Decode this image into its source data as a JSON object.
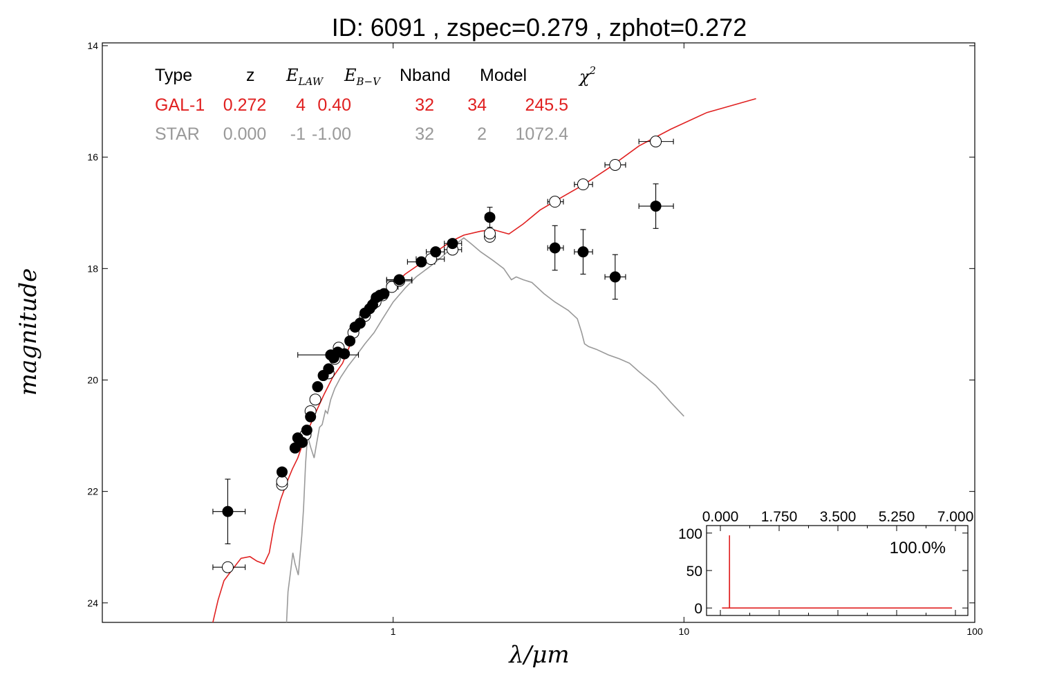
{
  "chart_data": {
    "type": "scatter",
    "title": "ID:  6091  , zspec=0.279 , zphot=0.272",
    "xlabel": "λ/μm",
    "ylabel": "magnitude",
    "xscale": "log",
    "xlim": [
      0.1,
      100
    ],
    "ylim": [
      24.35,
      13.95
    ],
    "y_inverted": true,
    "x_ticks": [
      {
        "v": 1,
        "label": "1"
      },
      {
        "v": 10,
        "label": "10"
      },
      {
        "v": 100,
        "label": "100"
      }
    ],
    "y_ticks": [
      {
        "v": 14,
        "label": "14"
      },
      {
        "v": 16,
        "label": "16"
      },
      {
        "v": 18,
        "label": "18"
      },
      {
        "v": 20,
        "label": "20"
      },
      {
        "v": 22,
        "label": "22"
      },
      {
        "v": 24,
        "label": "24"
      }
    ],
    "colors": {
      "galaxy_model": "#e02020",
      "star_model": "#999999",
      "observed": "#000000",
      "model_point": "#ffffff"
    },
    "legend_table": {
      "headers": [
        "Type",
        "z",
        "E",
        "LAW",
        "E",
        "B−V",
        "Nband",
        "Model",
        "χ",
        "2"
      ],
      "rows": [
        {
          "color": "#e02020",
          "cells": [
            "GAL-1",
            "0.272",
            "4",
            "0.40",
            "32",
            "34",
            "245.5"
          ]
        },
        {
          "color": "#999999",
          "cells": [
            "STAR",
            "0.000",
            "-1",
            "-1.00",
            "32",
            "2",
            "1072.4"
          ]
        }
      ]
    },
    "series": [
      {
        "role": "galaxy-model",
        "points": [
          [
            0.24,
            24.35
          ],
          [
            0.25,
            23.95
          ],
          [
            0.262,
            23.6
          ],
          [
            0.28,
            23.4
          ],
          [
            0.3,
            23.2
          ],
          [
            0.322,
            23.17
          ],
          [
            0.34,
            23.25
          ],
          [
            0.36,
            23.3
          ],
          [
            0.375,
            23.1
          ],
          [
            0.39,
            22.6
          ],
          [
            0.41,
            22.15
          ],
          [
            0.43,
            21.85
          ],
          [
            0.45,
            21.6
          ],
          [
            0.47,
            21.4
          ],
          [
            0.5,
            21.0
          ],
          [
            0.54,
            20.6
          ],
          [
            0.58,
            20.25
          ],
          [
            0.62,
            19.95
          ],
          [
            0.67,
            19.7
          ],
          [
            0.72,
            19.3
          ],
          [
            0.78,
            19.0
          ],
          [
            0.85,
            18.65
          ],
          [
            0.92,
            18.45
          ],
          [
            1.0,
            18.3
          ],
          [
            1.1,
            18.1
          ],
          [
            1.25,
            17.9
          ],
          [
            1.4,
            17.7
          ],
          [
            1.6,
            17.5
          ],
          [
            1.75,
            17.4
          ],
          [
            2.0,
            17.33
          ],
          [
            2.2,
            17.3
          ],
          [
            2.5,
            17.38
          ],
          [
            2.8,
            17.2
          ],
          [
            3.2,
            16.95
          ],
          [
            3.8,
            16.72
          ],
          [
            4.5,
            16.5
          ],
          [
            5.5,
            16.2
          ],
          [
            7.0,
            15.8
          ],
          [
            9.0,
            15.5
          ],
          [
            12.0,
            15.2
          ],
          [
            17.7,
            14.95
          ]
        ]
      },
      {
        "role": "star-model",
        "points": [
          [
            0.43,
            24.35
          ],
          [
            0.435,
            23.8
          ],
          [
            0.445,
            23.4
          ],
          [
            0.452,
            23.1
          ],
          [
            0.46,
            23.3
          ],
          [
            0.472,
            23.5
          ],
          [
            0.485,
            22.8
          ],
          [
            0.492,
            22.3
          ],
          [
            0.5,
            21.5
          ],
          [
            0.508,
            21.0
          ],
          [
            0.52,
            21.2
          ],
          [
            0.535,
            21.4
          ],
          [
            0.545,
            21.15
          ],
          [
            0.558,
            20.85
          ],
          [
            0.57,
            20.8
          ],
          [
            0.585,
            20.55
          ],
          [
            0.595,
            20.6
          ],
          [
            0.61,
            20.35
          ],
          [
            0.63,
            20.15
          ],
          [
            0.66,
            19.95
          ],
          [
            0.7,
            19.75
          ],
          [
            0.75,
            19.55
          ],
          [
            0.8,
            19.35
          ],
          [
            0.86,
            19.15
          ],
          [
            0.92,
            18.9
          ],
          [
            1.0,
            18.6
          ],
          [
            1.1,
            18.35
          ],
          [
            1.2,
            18.15
          ],
          [
            1.35,
            17.95
          ],
          [
            1.5,
            17.75
          ],
          [
            1.65,
            17.55
          ],
          [
            1.75,
            17.45
          ],
          [
            1.85,
            17.55
          ],
          [
            2.0,
            17.7
          ],
          [
            2.2,
            17.85
          ],
          [
            2.4,
            18.0
          ],
          [
            2.55,
            18.2
          ],
          [
            2.65,
            18.15
          ],
          [
            2.8,
            18.2
          ],
          [
            3.0,
            18.25
          ],
          [
            3.3,
            18.45
          ],
          [
            3.6,
            18.6
          ],
          [
            4.0,
            18.75
          ],
          [
            4.3,
            18.9
          ],
          [
            4.45,
            19.15
          ],
          [
            4.55,
            19.35
          ],
          [
            4.7,
            19.4
          ],
          [
            5.0,
            19.45
          ],
          [
            5.5,
            19.55
          ],
          [
            6.0,
            19.62
          ],
          [
            6.5,
            19.7
          ],
          [
            7.0,
            19.85
          ],
          [
            8.0,
            20.1
          ],
          [
            9.0,
            20.4
          ],
          [
            10.0,
            20.65
          ]
        ]
      },
      {
        "role": "observed",
        "points": [
          {
            "x": 0.27,
            "y": 22.36,
            "xerr": [
              0.24,
              0.31
            ],
            "yerr": 0.58
          },
          {
            "x": 0.415,
            "y": 21.65,
            "xerr": [
              0.405,
              0.43
            ],
            "yerr": 0.06
          },
          {
            "x": 0.46,
            "y": 21.22,
            "xerr": [
              0.452,
              0.47
            ],
            "yerr": 0.05
          },
          {
            "x": 0.47,
            "y": 21.04,
            "xerr": [
              0.46,
              0.48
            ],
            "yerr": 0.05
          },
          {
            "x": 0.487,
            "y": 21.12,
            "xerr": [
              0.475,
              0.5
            ],
            "yerr": 0.05
          },
          {
            "x": 0.505,
            "y": 20.9,
            "xerr": [
              0.495,
              0.515
            ],
            "yerr": 0.05
          },
          {
            "x": 0.52,
            "y": 20.66,
            "xerr": [
              0.51,
              0.53
            ],
            "yerr": 0.05
          },
          {
            "x": 0.55,
            "y": 20.12,
            "xerr": [
              0.54,
              0.56
            ],
            "yerr": 0.05
          },
          {
            "x": 0.575,
            "y": 19.92,
            "xerr": [
              0.565,
              0.585
            ],
            "yerr": 0.05
          },
          {
            "x": 0.6,
            "y": 19.8,
            "xerr": [
              0.59,
              0.61
            ],
            "yerr": 0.05
          },
          {
            "x": 0.61,
            "y": 19.55,
            "xerr": [
              0.47,
              0.76
            ],
            "yerr": 0.05
          },
          {
            "x": 0.625,
            "y": 19.6,
            "xerr": [
              0.615,
              0.635
            ],
            "yerr": 0.05
          },
          {
            "x": 0.645,
            "y": 19.5,
            "xerr": [
              0.635,
              0.655
            ],
            "yerr": 0.05
          },
          {
            "x": 0.68,
            "y": 19.53,
            "xerr": [
              0.67,
              0.69
            ],
            "yerr": 0.05
          },
          {
            "x": 0.71,
            "y": 19.3,
            "xerr": [
              0.7,
              0.72
            ],
            "yerr": 0.05
          },
          {
            "x": 0.74,
            "y": 19.05,
            "xerr": [
              0.73,
              0.75
            ],
            "yerr": 0.05
          },
          {
            "x": 0.77,
            "y": 18.98,
            "xerr": [
              0.76,
              0.78
            ],
            "yerr": 0.05
          },
          {
            "x": 0.8,
            "y": 18.8,
            "xerr": [
              0.79,
              0.81
            ],
            "yerr": 0.05
          },
          {
            "x": 0.83,
            "y": 18.72,
            "xerr": [
              0.82,
              0.84
            ],
            "yerr": 0.05
          },
          {
            "x": 0.85,
            "y": 18.65,
            "xerr": [
              0.84,
              0.86
            ],
            "yerr": 0.05
          },
          {
            "x": 0.875,
            "y": 18.52,
            "xerr": [
              0.865,
              0.885
            ],
            "yerr": 0.05
          },
          {
            "x": 0.9,
            "y": 18.48,
            "xerr": [
              0.89,
              0.91
            ],
            "yerr": 0.05
          },
          {
            "x": 0.93,
            "y": 18.45,
            "xerr": [
              0.92,
              0.94
            ],
            "yerr": 0.05
          },
          {
            "x": 1.05,
            "y": 18.2,
            "xerr": [
              0.95,
              1.16
            ],
            "yerr": 0.05
          },
          {
            "x": 1.25,
            "y": 17.88,
            "xerr": [
              1.12,
              1.39
            ],
            "yerr": 0.05
          },
          {
            "x": 1.4,
            "y": 17.7,
            "xerr": [
              1.3,
              1.5
            ],
            "yerr": 0.05
          },
          {
            "x": 1.6,
            "y": 17.55,
            "xerr": [
              1.5,
              1.72
            ],
            "yerr": 0.05
          },
          {
            "x": 2.15,
            "y": 17.08,
            "xerr": [
              2.07,
              2.23
            ],
            "yerr": 0.18
          },
          {
            "x": 3.6,
            "y": 17.63,
            "xerr": [
              3.4,
              3.85
            ],
            "yerr": 0.4
          },
          {
            "x": 4.5,
            "y": 17.7,
            "xerr": [
              4.2,
              4.85
            ],
            "yerr": 0.4
          },
          {
            "x": 5.8,
            "y": 18.15,
            "xerr": [
              5.35,
              6.3
            ],
            "yerr": 0.4
          },
          {
            "x": 8.0,
            "y": 16.88,
            "xerr": [
              7.0,
              9.2
            ],
            "yerr": 0.4
          }
        ]
      },
      {
        "role": "model-magnitudes",
        "points": [
          {
            "x": 0.27,
            "y": 23.36,
            "xerr": [
              0.24,
              0.31
            ]
          },
          {
            "x": 0.415,
            "y": 21.88,
            "xerr": [
              0.405,
              0.43
            ]
          },
          {
            "x": 0.415,
            "y": 21.82,
            "xerr": [
              0.405,
              0.43
            ]
          },
          {
            "x": 0.5,
            "y": 20.98,
            "xerr": [
              0.49,
              0.51
            ]
          },
          {
            "x": 0.52,
            "y": 20.56,
            "xerr": [
              0.51,
              0.53
            ]
          },
          {
            "x": 0.54,
            "y": 20.35,
            "xerr": [
              0.53,
              0.55
            ]
          },
          {
            "x": 0.6,
            "y": 19.88,
            "xerr": [
              0.59,
              0.61
            ]
          },
          {
            "x": 0.63,
            "y": 19.62,
            "xerr": [
              0.62,
              0.64
            ]
          },
          {
            "x": 0.65,
            "y": 19.42,
            "xerr": [
              0.64,
              0.66
            ]
          },
          {
            "x": 0.73,
            "y": 19.15,
            "xerr": [
              0.72,
              0.74
            ]
          },
          {
            "x": 0.8,
            "y": 18.85,
            "xerr": [
              0.79,
              0.81
            ]
          },
          {
            "x": 0.87,
            "y": 18.6,
            "xerr": [
              0.86,
              0.88
            ]
          },
          {
            "x": 0.92,
            "y": 18.48,
            "xerr": [
              0.91,
              0.93
            ]
          },
          {
            "x": 0.99,
            "y": 18.33,
            "xerr": [
              0.95,
              1.04
            ]
          },
          {
            "x": 1.05,
            "y": 18.22,
            "xerr": [
              0.95,
              1.16
            ]
          },
          {
            "x": 1.35,
            "y": 17.83,
            "xerr": [
              1.2,
              1.5
            ]
          },
          {
            "x": 1.6,
            "y": 17.66,
            "xerr": [
              1.5,
              1.72
            ]
          },
          {
            "x": 2.15,
            "y": 17.43,
            "xerr": [
              2.07,
              2.23
            ]
          },
          {
            "x": 2.15,
            "y": 17.37,
            "xerr": [
              2.07,
              2.23
            ]
          },
          {
            "x": 3.6,
            "y": 16.8,
            "xerr": [
              3.4,
              3.85
            ]
          },
          {
            "x": 4.5,
            "y": 16.49,
            "xerr": [
              4.2,
              4.85
            ]
          },
          {
            "x": 5.8,
            "y": 16.14,
            "xerr": [
              5.35,
              6.3
            ]
          },
          {
            "x": 8.0,
            "y": 15.72,
            "xerr": [
              7.0,
              9.2
            ]
          }
        ]
      }
    ],
    "inset": {
      "type": "line",
      "x_ticks": [
        {
          "v": 0,
          "label": "0.000"
        },
        {
          "v": 1.75,
          "label": "1.750"
        },
        {
          "v": 3.5,
          "label": "3.500"
        },
        {
          "v": 5.25,
          "label": "5.250"
        },
        {
          "v": 7,
          "label": "7.000"
        }
      ],
      "y_ticks": [
        {
          "v": 0,
          "label": "0"
        },
        {
          "v": 50,
          "label": "50"
        },
        {
          "v": 100,
          "label": "100"
        }
      ],
      "xlim": [
        0,
        7
      ],
      "ylim": [
        -10,
        110
      ],
      "x_minor": [
        0.875,
        2.625,
        4.375,
        6.125
      ],
      "annotation": "100.0%",
      "pdz": [
        [
          0.05,
          0
        ],
        [
          0.27,
          0
        ],
        [
          0.272,
          97
        ],
        [
          0.274,
          0
        ],
        [
          6.9,
          0
        ]
      ]
    }
  }
}
